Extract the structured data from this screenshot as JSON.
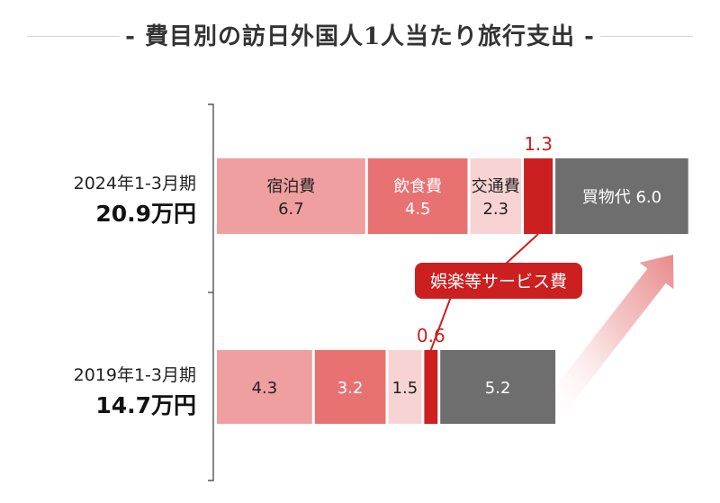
{
  "title": "‐ 費目別の訪日外国人1人当たり旅行支出 ‐",
  "colors": {
    "accommodation": "#ef9f9f",
    "food": "#e87272",
    "transport": "#f8d3d3",
    "entertainment": "#cc1f1f",
    "shopping": "#6e6e6e",
    "annotation_red": "#cc1f1f",
    "axis": "#555555"
  },
  "chart_data": {
    "type": "bar",
    "orientation": "horizontal",
    "stacked": true,
    "unit": "万円",
    "categories": [
      "2024年1-3月期",
      "2019年1-3月期"
    ],
    "totals": [
      "20.9万円",
      "14.7万円"
    ],
    "total_values": [
      20.9,
      14.7
    ],
    "series": [
      {
        "name": "宿泊費",
        "values": [
          6.7,
          4.3
        ]
      },
      {
        "name": "飲食費",
        "values": [
          4.5,
          3.2
        ]
      },
      {
        "name": "交通費",
        "values": [
          2.3,
          1.5
        ]
      },
      {
        "name": "娯楽等サービス費",
        "values": [
          1.3,
          0.6
        ]
      },
      {
        "name": "買物代",
        "values": [
          6.0,
          5.2
        ]
      }
    ],
    "segment_labels": [
      [
        "宿泊費\n6.7",
        "飲食費\n4.5",
        "交通費\n2.3",
        "",
        "買物代  6.0"
      ],
      [
        "4.3",
        "3.2",
        "1.5",
        "",
        "5.2"
      ]
    ],
    "outside_labels": [
      "1.3",
      "0.6"
    ],
    "callout": "娯楽等サービス費",
    "trend_arrow": "up-right",
    "legend": "none",
    "grid": false
  }
}
